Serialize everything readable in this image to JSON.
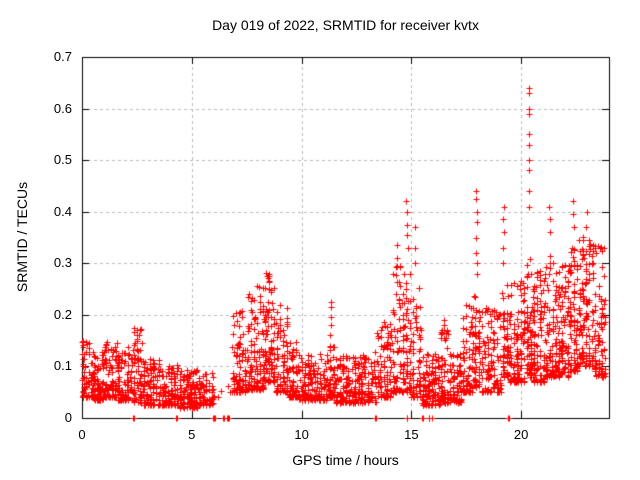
{
  "chart_data": {
    "type": "scatter",
    "title": "Day 019 of 2022, SRMTID for receiver kvtx",
    "xlabel": "GPS time / hours",
    "ylabel": "SRMTID / TECUs",
    "xlim": [
      0,
      24
    ],
    "ylim": [
      0,
      0.7
    ],
    "xticks": [
      0,
      5,
      10,
      15,
      20
    ],
    "yticks": [
      0,
      0.1,
      0.2,
      0.3,
      0.4,
      0.5,
      0.6,
      0.7
    ],
    "grid": true,
    "legend": null,
    "marker": "plus",
    "marker_color": "#ff0000",
    "grid_color": "#bbbbbb",
    "axis_color": "#000000",
    "background_color": "#ffffff",
    "seed": 20220119,
    "bands_format": [
      "t_start_hours",
      "t_end_hours",
      "n_points",
      "value_min_TECU",
      "value_max_TECU",
      "low_skew_power"
    ],
    "bands": [
      [
        0.0,
        0.5,
        70,
        0.04,
        0.15,
        2.2
      ],
      [
        0.5,
        1.0,
        80,
        0.035,
        0.13,
        2.2
      ],
      [
        1.0,
        1.6,
        85,
        0.04,
        0.15,
        2.0
      ],
      [
        1.6,
        2.3,
        100,
        0.035,
        0.14,
        2.2
      ],
      [
        2.3,
        2.75,
        60,
        0.03,
        0.175,
        1.9
      ],
      [
        2.75,
        3.6,
        110,
        0.025,
        0.115,
        2.0
      ],
      [
        3.6,
        4.4,
        100,
        0.025,
        0.105,
        2.0
      ],
      [
        4.4,
        5.3,
        120,
        0.02,
        0.095,
        1.8
      ],
      [
        5.3,
        6.0,
        70,
        0.025,
        0.09,
        1.8
      ],
      [
        6.0,
        6.85,
        4,
        0.04,
        0.07,
        1.5
      ],
      [
        6.85,
        7.5,
        95,
        0.05,
        0.21,
        2.1
      ],
      [
        7.5,
        8.3,
        115,
        0.055,
        0.26,
        2.2
      ],
      [
        8.3,
        8.8,
        85,
        0.07,
        0.285,
        1.9
      ],
      [
        8.8,
        9.4,
        80,
        0.05,
        0.22,
        2.2
      ],
      [
        9.4,
        9.8,
        55,
        0.04,
        0.15,
        2.0
      ],
      [
        9.8,
        11.2,
        160,
        0.035,
        0.125,
        2.0
      ],
      [
        11.2,
        11.55,
        50,
        0.04,
        0.17,
        2.0
      ],
      [
        11.55,
        12.5,
        120,
        0.03,
        0.12,
        2.0
      ],
      [
        12.5,
        13.4,
        110,
        0.03,
        0.13,
        2.0
      ],
      [
        13.4,
        14.1,
        90,
        0.04,
        0.19,
        2.2
      ],
      [
        14.1,
        14.55,
        65,
        0.05,
        0.3,
        2.2
      ],
      [
        14.55,
        15.0,
        70,
        0.05,
        0.28,
        2.1
      ],
      [
        15.0,
        15.45,
        60,
        0.04,
        0.26,
        2.2
      ],
      [
        15.45,
        16.3,
        115,
        0.025,
        0.125,
        1.9
      ],
      [
        16.3,
        16.7,
        60,
        0.03,
        0.19,
        2.1
      ],
      [
        16.7,
        17.3,
        80,
        0.03,
        0.125,
        1.9
      ],
      [
        17.3,
        17.85,
        80,
        0.05,
        0.22,
        2.1
      ],
      [
        17.85,
        18.15,
        50,
        0.06,
        0.26,
        2.0
      ],
      [
        18.15,
        19.1,
        110,
        0.05,
        0.215,
        2.0
      ],
      [
        19.1,
        19.45,
        50,
        0.08,
        0.27,
        2.0
      ],
      [
        19.45,
        20.2,
        115,
        0.07,
        0.27,
        2.1
      ],
      [
        20.2,
        20.5,
        55,
        0.08,
        0.31,
        2.0
      ],
      [
        20.5,
        21.1,
        95,
        0.07,
        0.29,
        2.0
      ],
      [
        21.1,
        21.5,
        65,
        0.08,
        0.33,
        2.0
      ],
      [
        21.5,
        22.2,
        115,
        0.08,
        0.3,
        1.9
      ],
      [
        22.2,
        22.6,
        70,
        0.09,
        0.33,
        2.0
      ],
      [
        22.6,
        23.3,
        115,
        0.1,
        0.355,
        1.8
      ],
      [
        23.3,
        23.85,
        85,
        0.08,
        0.34,
        1.8
      ]
    ],
    "spike_columns_format": [
      "t_hours",
      "values_TECU"
    ],
    "spike_columns": [
      [
        2.5,
        [
          0.15,
          0.16,
          0.17
        ]
      ],
      [
        8.55,
        [
          0.25,
          0.265,
          0.28
        ]
      ],
      [
        11.35,
        [
          0.18,
          0.195,
          0.215,
          0.225
        ]
      ],
      [
        14.35,
        [
          0.31,
          0.335
        ]
      ],
      [
        14.8,
        [
          0.33,
          0.355,
          0.375,
          0.4,
          0.42
        ]
      ],
      [
        15.2,
        [
          0.3,
          0.33,
          0.37
        ]
      ],
      [
        16.5,
        [
          0.155,
          0.17,
          0.19
        ]
      ],
      [
        17.95,
        [
          0.28,
          0.3,
          0.32,
          0.35,
          0.38,
          0.4,
          0.425,
          0.44
        ]
      ],
      [
        19.2,
        [
          0.3,
          0.33,
          0.36,
          0.385,
          0.41
        ]
      ],
      [
        20.35,
        [
          0.41,
          0.44,
          0.48,
          0.5,
          0.53,
          0.55,
          0.59,
          0.6,
          0.63,
          0.64
        ]
      ],
      [
        21.3,
        [
          0.36,
          0.385,
          0.41
        ]
      ],
      [
        22.4,
        [
          0.37,
          0.395,
          0.42
        ]
      ],
      [
        23.0,
        [
          0.37,
          0.4
        ]
      ]
    ],
    "zero_marker_times": [
      2.32,
      2.37,
      4.28,
      4.32,
      5.95,
      6.0,
      6.05,
      6.42,
      6.47,
      6.6,
      6.65,
      6.68,
      13.33,
      13.37,
      14.78,
      14.82,
      15.5,
      15.54,
      15.78,
      15.82,
      15.95,
      19.4,
      19.45
    ]
  }
}
